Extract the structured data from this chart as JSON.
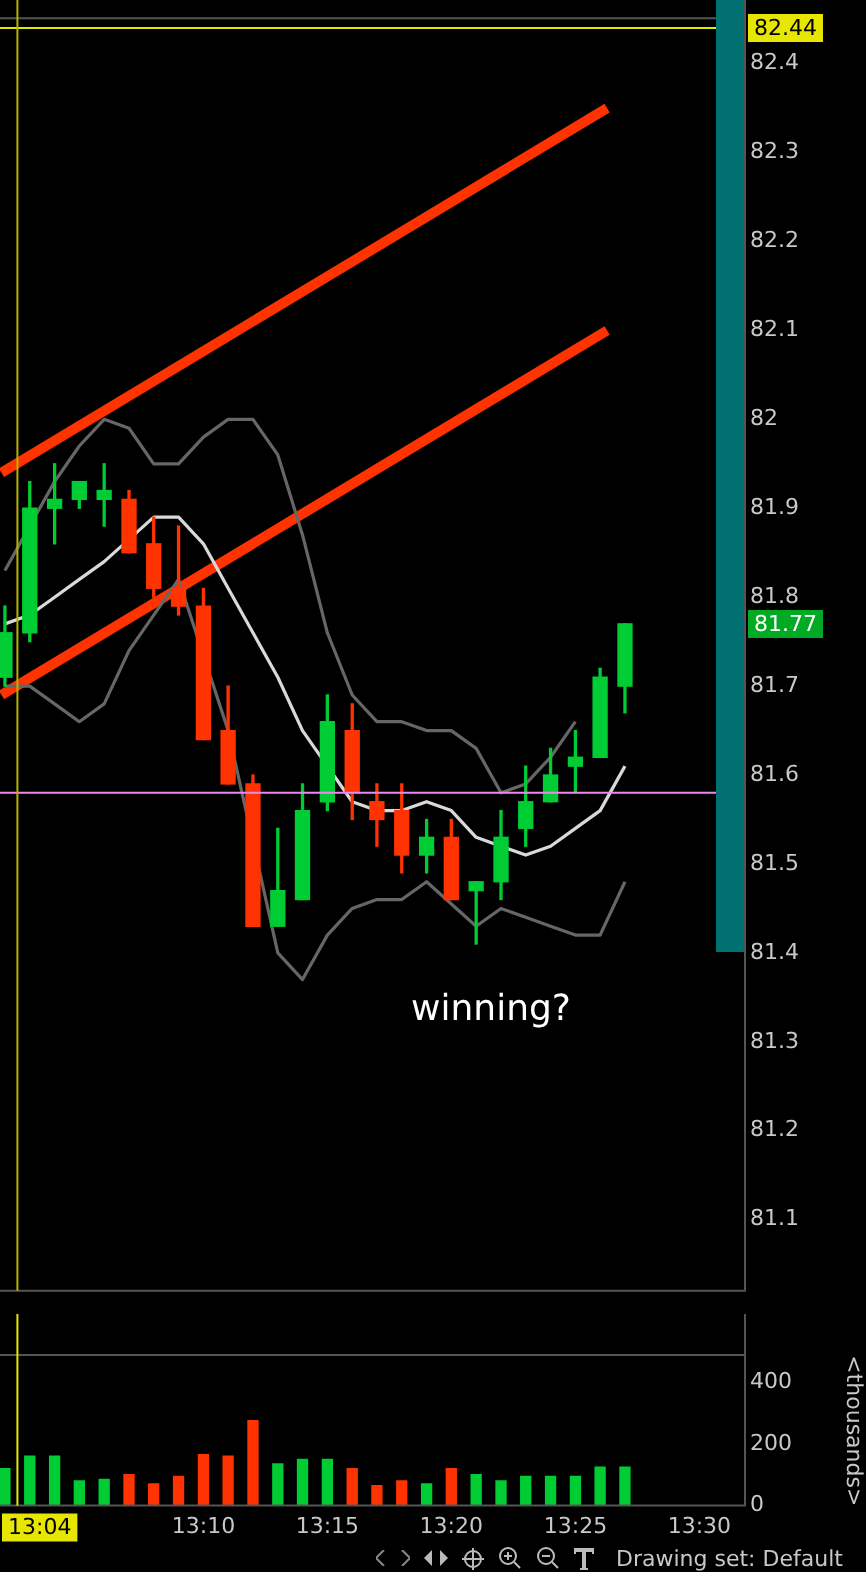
{
  "chart_data": [
    {
      "type": "candlestick",
      "x": [
        13.0333,
        13.05,
        13.0667,
        13.0833,
        13.1,
        13.1167,
        13.1333,
        13.15,
        13.1667,
        13.1833,
        13.2,
        13.2167,
        13.2333,
        13.25,
        13.2667,
        13.2833,
        13.3,
        13.3167,
        13.3333,
        13.35,
        13.3667,
        13.3833,
        13.4,
        13.4167,
        13.4333,
        13.45
      ],
      "ohlc": [
        [
          81.71,
          81.79,
          81.7,
          81.76
        ],
        [
          81.76,
          81.93,
          81.75,
          81.9
        ],
        [
          81.9,
          81.95,
          81.86,
          81.91
        ],
        [
          81.91,
          81.93,
          81.9,
          81.93
        ],
        [
          81.91,
          81.95,
          81.88,
          81.92
        ],
        [
          81.91,
          81.92,
          81.85,
          81.85
        ],
        [
          81.86,
          81.89,
          81.8,
          81.81
        ],
        [
          81.81,
          81.88,
          81.78,
          81.79
        ],
        [
          81.79,
          81.81,
          81.64,
          81.64
        ],
        [
          81.65,
          81.7,
          81.59,
          81.59
        ],
        [
          81.59,
          81.6,
          81.43,
          81.43
        ],
        [
          81.43,
          81.54,
          81.43,
          81.47
        ],
        [
          81.46,
          81.59,
          81.46,
          81.56
        ],
        [
          81.57,
          81.69,
          81.56,
          81.66
        ],
        [
          81.65,
          81.68,
          81.55,
          81.58
        ],
        [
          81.57,
          81.59,
          81.52,
          81.55
        ],
        [
          81.56,
          81.59,
          81.49,
          81.51
        ],
        [
          81.51,
          81.55,
          81.49,
          81.53
        ],
        [
          81.53,
          81.55,
          81.46,
          81.46
        ],
        [
          81.47,
          81.48,
          81.41,
          81.48
        ],
        [
          81.48,
          81.56,
          81.46,
          81.53
        ],
        [
          81.54,
          81.61,
          81.52,
          81.57
        ],
        [
          81.57,
          81.63,
          81.57,
          81.6
        ],
        [
          81.61,
          81.65,
          81.58,
          81.62
        ],
        [
          81.62,
          81.72,
          81.62,
          81.71
        ],
        [
          81.7,
          81.77,
          81.67,
          81.77
        ]
      ],
      "colors": [
        "#00cc33",
        "#00cc33",
        "#00cc33",
        "#00cc33",
        "#00cc33",
        "#ff3300",
        "#ff3300",
        "#ff3300",
        "#ff3300",
        "#ff3300",
        "#ff3300",
        "#00cc33",
        "#00cc33",
        "#00cc33",
        "#ff3300",
        "#ff3300",
        "#ff3300",
        "#00cc33",
        "#ff3300",
        "#00cc33",
        "#00cc33",
        "#00cc33",
        "#00cc33",
        "#00cc33",
        "#00cc33",
        "#00cc33"
      ],
      "series": [
        {
          "type": "line",
          "color": "#d9d9d9",
          "x": [
            13.0333,
            13.05,
            13.0667,
            13.0833,
            13.1,
            13.1167,
            13.1333,
            13.15,
            13.1667,
            13.1833,
            13.2,
            13.2167,
            13.2333,
            13.25,
            13.2667,
            13.2833,
            13.3,
            13.3167,
            13.3333,
            13.35,
            13.3667,
            13.3833,
            13.4,
            13.4167,
            13.4333,
            13.45
          ],
          "values": [
            81.77,
            81.78,
            81.8,
            81.82,
            81.84,
            null,
            81.89,
            81.89,
            81.86,
            81.81,
            81.76,
            81.71,
            81.65,
            null,
            81.57,
            81.56,
            81.56,
            81.57,
            81.56,
            81.53,
            81.52,
            81.51,
            81.52,
            81.54,
            81.56,
            81.61
          ]
        },
        {
          "type": "line",
          "color": "#666666",
          "x": [
            13.0333,
            13.05,
            13.0667,
            13.0833,
            13.1,
            13.1167,
            13.1333,
            13.15,
            13.1667,
            13.1833,
            13.2,
            13.2167,
            13.2333,
            13.25,
            13.2667,
            13.2833,
            13.3,
            13.3167,
            13.3333,
            13.35,
            13.3667,
            13.3833,
            13.4,
            13.4167
          ],
          "values": [
            81.83,
            null,
            81.93,
            81.97,
            82.0,
            81.99,
            81.95,
            81.95,
            81.98,
            82.0,
            82.0,
            81.96,
            81.87,
            81.76,
            81.69,
            81.66,
            81.66,
            81.65,
            81.65,
            81.63,
            81.58,
            81.59,
            81.62,
            81.66
          ]
        },
        {
          "type": "line",
          "color": "#666666",
          "x": [
            13.0333,
            13.05,
            13.0667,
            13.0833,
            13.1,
            13.1167,
            13.1333,
            13.15,
            13.1667,
            13.1833,
            13.2,
            13.2167,
            13.2333,
            13.25,
            13.2667,
            13.2833,
            13.3,
            13.3167,
            13.3333,
            13.35,
            13.3667,
            13.3833,
            13.4,
            13.4167,
            13.4333,
            13.45
          ],
          "values": [
            81.7,
            81.7,
            81.68,
            81.66,
            81.68,
            81.74,
            null,
            81.82,
            null,
            81.65,
            null,
            81.4,
            81.37,
            81.42,
            81.45,
            81.46,
            81.46,
            81.48,
            null,
            81.43,
            81.45,
            81.44,
            81.43,
            81.42,
            81.42,
            81.48
          ]
        },
        {
          "type": "line",
          "color": "#ff3300",
          "x": [
            13.031,
            13.438
          ],
          "values": [
            81.94,
            82.35
          ]
        },
        {
          "type": "line",
          "color": "#ff3300",
          "x": [
            13.031,
            13.438
          ],
          "values": [
            81.69,
            82.1
          ]
        }
      ],
      "xlim": [
        13.03,
        13.53
      ],
      "ylim": [
        81.02,
        82.45
      ],
      "yticks": [
        81.1,
        81.2,
        81.3,
        81.4,
        81.5,
        81.6,
        81.7,
        81.8,
        81.9,
        82,
        82.1,
        82.2,
        82.3,
        82.4
      ],
      "ref_lines": [
        {
          "axis": "y",
          "value": 81.58,
          "color": "#ee88ee"
        },
        {
          "axis": "y",
          "value": 82.44,
          "label": "82.44",
          "color": "#e6e600"
        },
        {
          "axis": "x",
          "value": 13.0417,
          "color": "#b3b300"
        }
      ],
      "annotations": [
        "winning?",
        "81.77"
      ],
      "tick_labels": "y"
    },
    {
      "type": "bar",
      "x": [
        13.0333,
        13.05,
        13.0667,
        13.0833,
        13.1,
        13.1167,
        13.1333,
        13.15,
        13.1667,
        13.1833,
        13.2,
        13.2167,
        13.2333,
        13.25,
        13.2667,
        13.2833,
        13.3,
        13.3167,
        13.3333,
        13.35,
        13.3667,
        13.3833,
        13.4,
        13.4167,
        13.4333,
        13.45
      ],
      "values": [
        120,
        160,
        160,
        80,
        85,
        100,
        70,
        95,
        165,
        160,
        275,
        135,
        150,
        150,
        120,
        65,
        80,
        70,
        120,
        100,
        80,
        95,
        95,
        95,
        125,
        125
      ],
      "colors": [
        "#00cc33",
        "#00cc33",
        "#00cc33",
        "#00cc33",
        "#00cc33",
        "#ff3300",
        "#ff3300",
        "#ff3300",
        "#ff3300",
        "#ff3300",
        "#ff3300",
        "#00cc33",
        "#00cc33",
        "#00cc33",
        "#ff3300",
        "#ff3300",
        "#ff3300",
        "#00cc33",
        "#ff3300",
        "#00cc33",
        "#00cc33",
        "#00cc33",
        "#00cc33",
        "#00cc33",
        "#00cc33",
        "#00cc33"
      ],
      "xlim": [
        13.03,
        13.53
      ],
      "xticks": [
        {
          "value": 13.1667,
          "label": "13:10"
        },
        {
          "value": 13.25,
          "label": "13:15"
        },
        {
          "value": 13.3333,
          "label": "13:20"
        },
        {
          "value": 13.4167,
          "label": "13:25"
        },
        {
          "value": 13.5,
          "label": "13:30"
        }
      ],
      "ylim": [
        0,
        485
      ],
      "yticks": [
        0,
        200,
        400
      ],
      "ylabel": "<thousands>",
      "ref_lines": [
        {
          "axis": "x",
          "value": 13.0417,
          "label": "13:04",
          "color": "#e6e600"
        }
      ],
      "annotations": [
        "Drawing set: Default"
      ]
    }
  ]
}
